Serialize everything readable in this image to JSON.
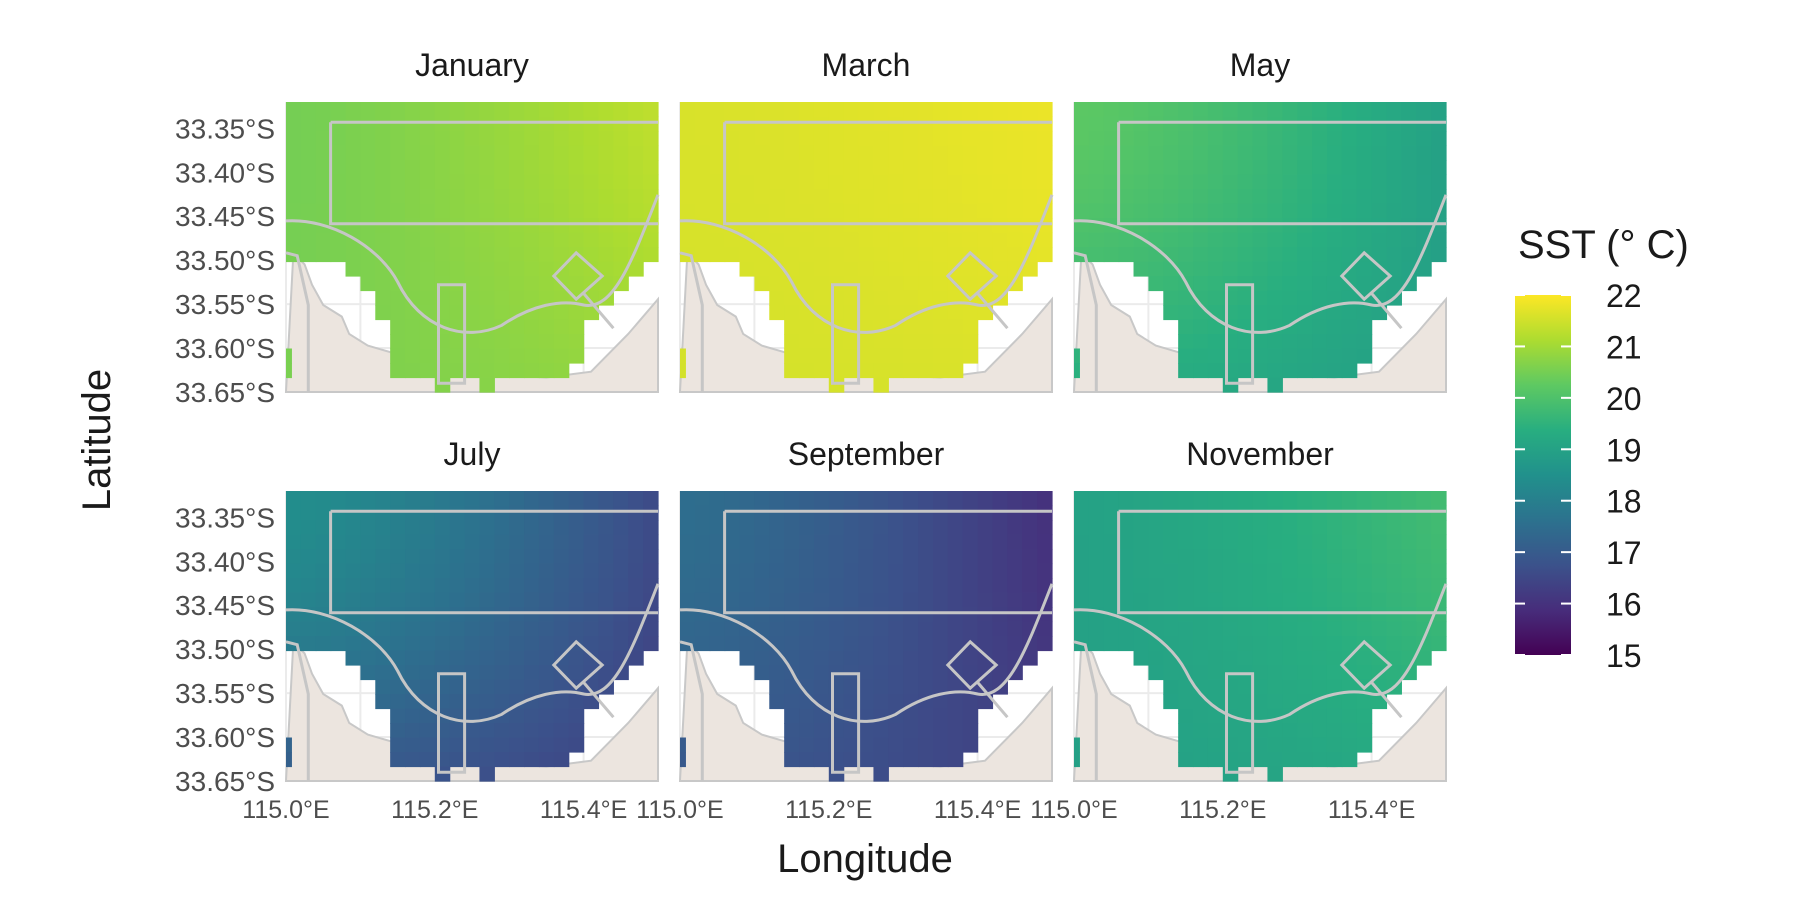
{
  "chart_data": {
    "type": "heatmap",
    "title": "",
    "xlabel": "Longitude",
    "ylabel": "Latitude",
    "x_ticks": [
      "115.0°E",
      "115.2°E",
      "115.4°E"
    ],
    "y_ticks": [
      "33.35°S",
      "33.40°S",
      "33.45°S",
      "33.50°S",
      "33.55°S",
      "33.60°S",
      "33.65°S"
    ],
    "xlim": [
      115.0,
      115.5
    ],
    "ylim": [
      -33.65,
      -33.32
    ],
    "grid": true,
    "colorscale": "viridis",
    "legend": {
      "title": "SST (° C)",
      "placement": "right",
      "min": 15,
      "max": 22,
      "ticks": [
        "22",
        "21",
        "20",
        "19",
        "18",
        "17",
        "16",
        "15"
      ]
    },
    "panels": [
      {
        "month": "January",
        "sst_west": 20.5,
        "sst_east": 21.3,
        "sst_south": 20.6
      },
      {
        "month": "March",
        "sst_west": 21.6,
        "sst_east": 21.8,
        "sst_south": 21.5
      },
      {
        "month": "May",
        "sst_west": 20.2,
        "sst_east": 19.0,
        "sst_south": 18.8
      },
      {
        "month": "July",
        "sst_west": 18.4,
        "sst_east": 16.6,
        "sst_south": 16.1
      },
      {
        "month": "September",
        "sst_west": 17.5,
        "sst_east": 16.0,
        "sst_south": 16.5
      },
      {
        "month": "November",
        "sst_west": 19.0,
        "sst_east": 19.8,
        "sst_south": 18.9
      }
    ]
  }
}
